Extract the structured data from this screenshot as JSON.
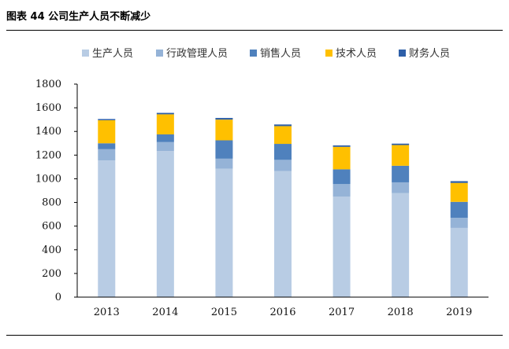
{
  "figure": {
    "title": "图表 44 公司生产人员不断减少"
  },
  "chart_data": {
    "type": "bar",
    "stacked": true,
    "title": "图表 44 公司生产人员不断减少",
    "categories": [
      "2013",
      "2014",
      "2015",
      "2016",
      "2017",
      "2018",
      "2019"
    ],
    "series": [
      {
        "name": "生产人员",
        "color": "#b8cce4",
        "values": [
          1155,
          1235,
          1085,
          1065,
          850,
          880,
          585
        ]
      },
      {
        "name": "行政管理人员",
        "color": "#95b3d7",
        "values": [
          95,
          75,
          85,
          95,
          105,
          90,
          85
        ]
      },
      {
        "name": "销售人员",
        "color": "#4f81bd",
        "values": [
          50,
          65,
          155,
          135,
          125,
          140,
          135
        ]
      },
      {
        "name": "技术人员",
        "color": "#ffc000",
        "values": [
          195,
          170,
          175,
          150,
          190,
          175,
          160
        ]
      },
      {
        "name": "财务人员",
        "color": "#2e5fa8",
        "values": [
          10,
          12,
          14,
          14,
          12,
          12,
          15
        ]
      }
    ],
    "yticks": [
      "0",
      "200",
      "400",
      "600",
      "800",
      "1000",
      "1200",
      "1400",
      "1600",
      "1800"
    ],
    "ylim": [
      0,
      1800
    ],
    "xlabel": "",
    "ylabel": "",
    "legend": "top"
  }
}
